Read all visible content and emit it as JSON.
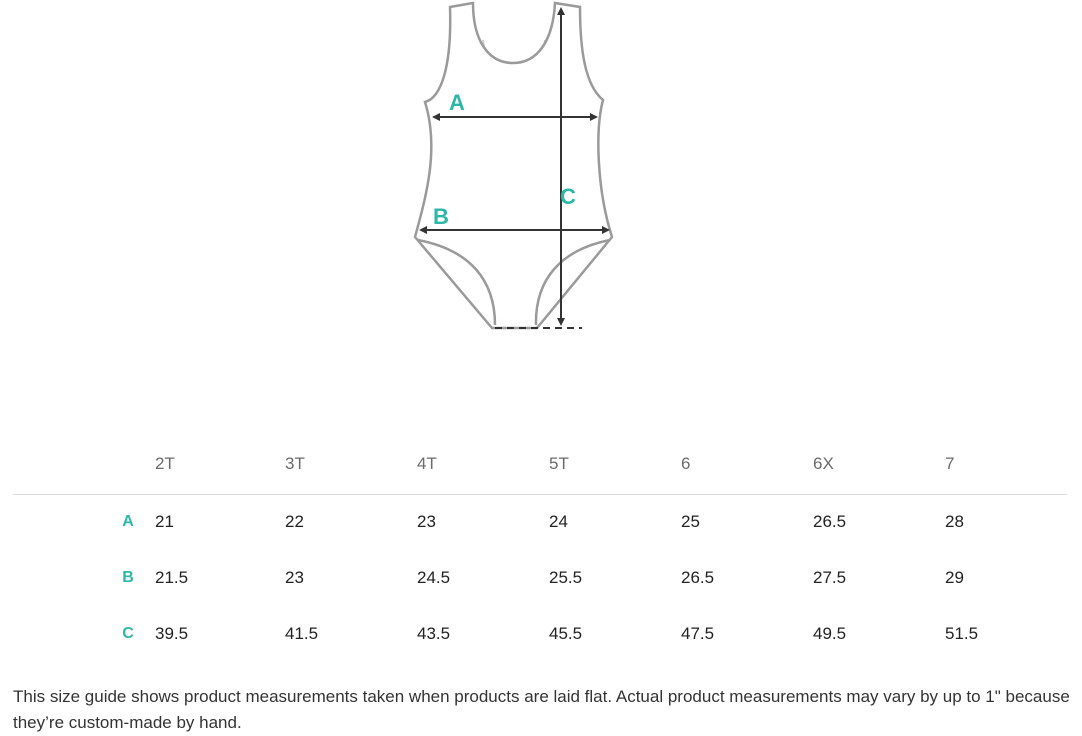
{
  "diagram": {
    "labels": {
      "a": "A",
      "b": "B",
      "c": "C"
    },
    "accent_color": "#2bb8a8",
    "outline_color": "#9a9a9a",
    "arrow_color": "#333333"
  },
  "table": {
    "sizes": [
      "2T",
      "3T",
      "4T",
      "5T",
      "6",
      "6X",
      "7"
    ],
    "rows": [
      {
        "label": "A",
        "values": [
          "21",
          "22",
          "23",
          "24",
          "25",
          "26.5",
          "28"
        ]
      },
      {
        "label": "B",
        "values": [
          "21.5",
          "23",
          "24.5",
          "25.5",
          "26.5",
          "27.5",
          "29"
        ]
      },
      {
        "label": "C",
        "values": [
          "39.5",
          "41.5",
          "43.5",
          "45.5",
          "47.5",
          "49.5",
          "51.5"
        ]
      }
    ]
  },
  "note": "This size guide shows product measurements taken when products are laid flat. Actual product measurements may vary by up to 1\" because they’re custom-made by hand."
}
